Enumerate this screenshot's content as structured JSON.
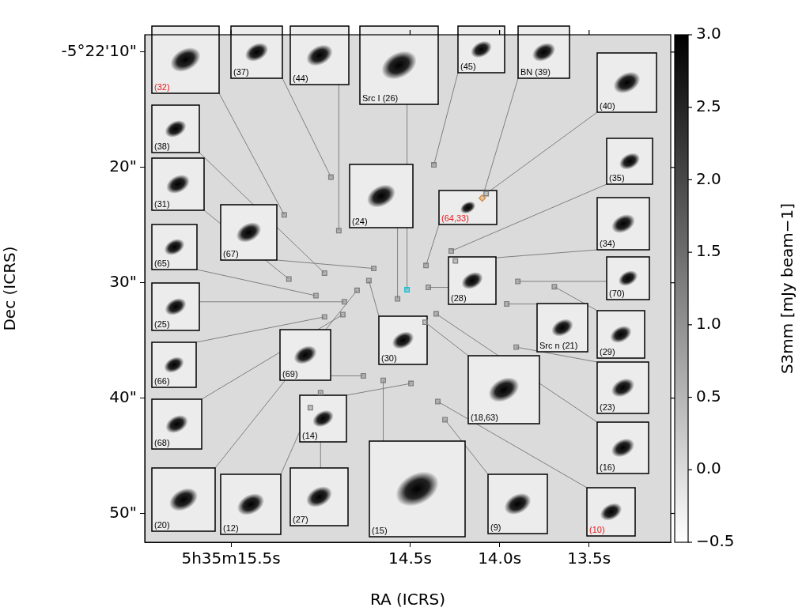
{
  "chart_data": {
    "type": "scatter",
    "x_label": "RA (ICRS)",
    "y_label": "Dec (ICRS)",
    "xlim": [
      15.982,
      13.044
    ],
    "ylim": [
      52.5,
      8.5
    ],
    "xticks": [
      {
        "value": 15.5,
        "label": "5h35m15.5s"
      },
      {
        "value": 14.5,
        "label": "14.5s"
      },
      {
        "value": 14.0,
        "label": "14.0s"
      },
      {
        "value": 13.5,
        "label": "13.5s"
      }
    ],
    "yticks": [
      {
        "value": 10,
        "label": "-5°22'10\""
      },
      {
        "value": 20,
        "label": "20\""
      },
      {
        "value": 30,
        "label": "30\""
      },
      {
        "value": 40,
        "label": "40\""
      },
      {
        "value": 50,
        "label": "50\""
      }
    ],
    "grid": false,
    "series": [
      {
        "marker": "square",
        "color": "#7f7f7f",
        "x": [
          15.203,
          14.942,
          14.898,
          14.367,
          14.075,
          14.978,
          14.27,
          15.177,
          14.57,
          14.411,
          14.703,
          14.247,
          15.026,
          14.398,
          13.898,
          14.867,
          13.96,
          13.694,
          14.73,
          14.978,
          14.761,
          14.416,
          13.907,
          14.495,
          14.876,
          14.354,
          14.796,
          15.057,
          15.0,
          14.65,
          14.305,
          14.345
        ],
        "y": [
          24.11,
          20.83,
          25.48,
          19.78,
          22.27,
          29.16,
          27.25,
          29.68,
          31.39,
          28.5,
          28.76,
          28.11,
          31.12,
          30.4,
          29.88,
          31.65,
          31.84,
          30.34,
          29.81,
          32.96,
          38.07,
          33.42,
          35.58,
          38.73,
          32.76,
          32.7,
          30.66,
          40.83,
          39.52,
          38.47,
          41.88,
          40.3
        ]
      },
      {
        "marker": "square",
        "color": "#17becf",
        "x": [
          14.517
        ],
        "y": [
          30.6
        ]
      },
      {
        "marker": "diamond",
        "color": "#d2883a",
        "x": [
          14.097
        ],
        "y": [
          22.66
        ]
      }
    ],
    "annotations": [
      {
        "text": "(32)",
        "color": "#e41a1c",
        "x": 15.203,
        "y": 24.11
      },
      {
        "text": "(37)",
        "color": "#000000",
        "x": 14.942,
        "y": 20.83
      },
      {
        "text": "(44)",
        "color": "#000000",
        "x": 14.898,
        "y": 25.48
      },
      {
        "text": "Src I (26)",
        "color": "#000000",
        "x": 14.517,
        "y": 30.6
      },
      {
        "text": "(45)",
        "color": "#000000",
        "x": 14.367,
        "y": 19.78
      },
      {
        "text": "BN (39)",
        "color": "#000000",
        "x": 14.097,
        "y": 22.66
      },
      {
        "text": "(40)",
        "color": "#000000",
        "x": 14.075,
        "y": 22.27
      },
      {
        "text": "(38)",
        "color": "#000000",
        "x": 14.978,
        "y": 29.16
      },
      {
        "text": "(35)",
        "color": "#000000",
        "x": 14.27,
        "y": 27.25
      },
      {
        "text": "(31)",
        "color": "#000000",
        "x": 15.177,
        "y": 29.68
      },
      {
        "text": "(24)",
        "color": "#000000",
        "x": 14.57,
        "y": 31.39
      },
      {
        "text": "(64,33)",
        "color": "#e41a1c",
        "x": 14.411,
        "y": 28.5
      },
      {
        "text": "(67)",
        "color": "#000000",
        "x": 14.703,
        "y": 28.76
      },
      {
        "text": "(34)",
        "color": "#000000",
        "x": 14.247,
        "y": 28.11
      },
      {
        "text": "(65)",
        "color": "#000000",
        "x": 15.026,
        "y": 31.12
      },
      {
        "text": "(28)",
        "color": "#000000",
        "x": 14.398,
        "y": 30.4
      },
      {
        "text": "(70)",
        "color": "#000000",
        "x": 13.898,
        "y": 29.88
      },
      {
        "text": "(25)",
        "color": "#000000",
        "x": 14.867,
        "y": 31.65
      },
      {
        "text": "Src n (21)",
        "color": "#000000",
        "x": 13.96,
        "y": 31.84
      },
      {
        "text": "(29)",
        "color": "#000000",
        "x": 13.694,
        "y": 30.34
      },
      {
        "text": "(30)",
        "color": "#000000",
        "x": 14.73,
        "y": 29.81
      },
      {
        "text": "(66)",
        "color": "#000000",
        "x": 14.978,
        "y": 32.96
      },
      {
        "text": "(69)",
        "color": "#000000",
        "x": 14.761,
        "y": 38.07
      },
      {
        "text": "(18,63)",
        "color": "#000000",
        "x": 14.416,
        "y": 33.42
      },
      {
        "text": "(23)",
        "color": "#000000",
        "x": 13.907,
        "y": 35.58
      },
      {
        "text": "(14)",
        "color": "#000000",
        "x": 14.495,
        "y": 38.73
      },
      {
        "text": "(68)",
        "color": "#000000",
        "x": 14.876,
        "y": 32.76
      },
      {
        "text": "(16)",
        "color": "#000000",
        "x": 14.354,
        "y": 32.7
      },
      {
        "text": "(20)",
        "color": "#000000",
        "x": 14.796,
        "y": 30.66
      },
      {
        "text": "(12)",
        "color": "#000000",
        "x": 15.057,
        "y": 40.83
      },
      {
        "text": "(27)",
        "color": "#000000",
        "x": 15.0,
        "y": 39.52
      },
      {
        "text": "(15)",
        "color": "#000000",
        "x": 14.65,
        "y": 38.47
      },
      {
        "text": "(9)",
        "color": "#000000",
        "x": 14.305,
        "y": 41.88
      },
      {
        "text": "(10)",
        "color": "#e41a1c",
        "x": 14.345,
        "y": 40.3
      }
    ],
    "colorbar": {
      "label": "S3mm [mJy beam−1]",
      "range": [
        -0.5,
        3.0
      ],
      "ticks": [
        {
          "value": -0.5,
          "label": "−0.5"
        },
        {
          "value": 0,
          "label": "0.0"
        },
        {
          "value": 0.5,
          "label": "0.5"
        },
        {
          "value": 1,
          "label": "1.0"
        },
        {
          "value": 1.5,
          "label": "1.5"
        },
        {
          "value": 2,
          "label": "2.0"
        },
        {
          "value": 2.5,
          "label": "2.5"
        },
        {
          "value": 3,
          "label": "3.0"
        }
      ],
      "colors": [
        "#ffffff",
        "#000000"
      ]
    }
  }
}
